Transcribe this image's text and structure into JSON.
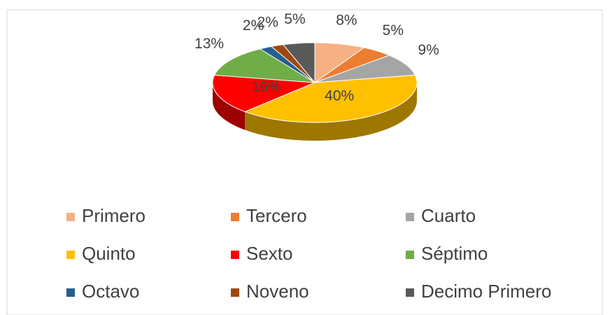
{
  "chart_data": {
    "type": "pie3d",
    "categories": [
      "Primero",
      "Tercero",
      "Cuarto",
      "Quinto",
      "Sexto",
      "Séptimo",
      "Octavo",
      "Noveno",
      "Decimo Primero"
    ],
    "values": [
      8,
      5,
      9,
      40,
      16,
      13,
      2,
      2,
      5
    ],
    "value_labels": [
      "8%",
      "5%",
      "9%",
      "40%",
      "16%",
      "13%",
      "2%",
      "2%",
      "5%"
    ],
    "colors": [
      "#f4b183",
      "#ed7d31",
      "#a5a5a5",
      "#ffc000",
      "#ff0000",
      "#70ad47",
      "#255e91",
      "#9e480e",
      "#595959"
    ],
    "legend": "bottom"
  }
}
